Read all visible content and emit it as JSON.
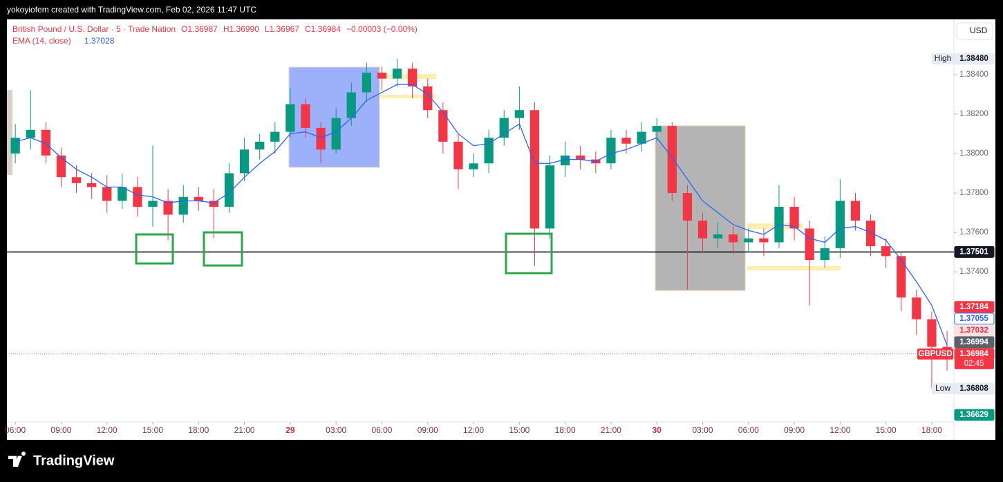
{
  "header": {
    "credit": "yokoyiofem created with TradingView.com, Feb 02, 2026 11:47 UTC",
    "logo": "TradingView"
  },
  "chart_data": {
    "type": "candlestick",
    "symbol": "British Pound / U.S. Dollar · 5 · Trade Nation",
    "ohlc_labels": [
      "O",
      "H",
      "L",
      "C"
    ],
    "ohlc_values": [
      "1.36987",
      "1.36990",
      "1.36967",
      "1.36984"
    ],
    "change": "−0.00003 (−0.00%)",
    "currency": "USD",
    "up_color": "#089981",
    "down_color": "#f23645",
    "candles": {
      "x": [
        0,
        1,
        2,
        3,
        4,
        5,
        6,
        7,
        8,
        9,
        10,
        11,
        12,
        13,
        14,
        15,
        16,
        17,
        18,
        19,
        20,
        21,
        22,
        23,
        24,
        25,
        26,
        27,
        28,
        29,
        30,
        31,
        32,
        33,
        34,
        35,
        36,
        37,
        38,
        39,
        40,
        41,
        42,
        43,
        44,
        45,
        46,
        47,
        48,
        49,
        50,
        51,
        52,
        53,
        54,
        55,
        56,
        57,
        58,
        59,
        60,
        61
      ],
      "open": [
        1.38,
        1.3808,
        1.3812,
        1.3799,
        1.3788,
        1.3785,
        1.3783,
        1.3776,
        1.3783,
        1.3773,
        1.3776,
        1.3769,
        1.3778,
        1.3776,
        1.3773,
        1.379,
        1.3802,
        1.3806,
        1.3811,
        1.3825,
        1.3813,
        1.3802,
        1.3818,
        1.3831,
        1.3841,
        1.3838,
        1.3843,
        1.3834,
        1.3822,
        1.3806,
        1.3792,
        1.3795,
        1.3808,
        1.3818,
        1.3822,
        1.3762,
        1.3794,
        1.3799,
        1.3797,
        1.3795,
        1.3808,
        1.3805,
        1.3811,
        1.3814,
        1.378,
        1.3766,
        1.3757,
        1.3759,
        1.3755,
        1.3757,
        1.3755,
        1.3773,
        1.3762,
        1.3746,
        1.3752,
        1.3776,
        1.3766,
        1.3753,
        1.3748,
        1.3727,
        1.3716,
        1.3702
      ],
      "high": [
        1.3815,
        1.3832,
        1.3816,
        1.3803,
        1.3794,
        1.379,
        1.3789,
        1.379,
        1.3788,
        1.3804,
        1.3782,
        1.3784,
        1.3783,
        1.3782,
        1.3795,
        1.3808,
        1.381,
        1.3816,
        1.3833,
        1.3828,
        1.3816,
        1.3823,
        1.3836,
        1.3846,
        1.3844,
        1.3848,
        1.3846,
        1.3838,
        1.3826,
        1.381,
        1.38,
        1.3812,
        1.3822,
        1.3834,
        1.3826,
        1.3799,
        1.3806,
        1.3804,
        1.3801,
        1.3812,
        1.3812,
        1.3816,
        1.3818,
        1.3816,
        1.3784,
        1.377,
        1.3765,
        1.3763,
        1.3762,
        1.3762,
        1.3784,
        1.3778,
        1.3766,
        1.3758,
        1.3787,
        1.378,
        1.3769,
        1.3757,
        1.375,
        1.3731,
        1.372,
        1.371
      ],
      "low": [
        1.3795,
        1.3802,
        1.3795,
        1.3783,
        1.378,
        1.3777,
        1.377,
        1.3772,
        1.3768,
        1.3763,
        1.3756,
        1.3765,
        1.3771,
        1.3757,
        1.377,
        1.3786,
        1.3797,
        1.38,
        1.3808,
        1.3808,
        1.3795,
        1.38,
        1.3814,
        1.3826,
        1.3832,
        1.3834,
        1.3828,
        1.3818,
        1.38,
        1.3782,
        1.3788,
        1.379,
        1.3804,
        1.3812,
        1.3743,
        1.3757,
        1.3788,
        1.3792,
        1.379,
        1.3792,
        1.38,
        1.3801,
        1.3806,
        1.3776,
        1.3731,
        1.375,
        1.3752,
        1.3749,
        1.375,
        1.3748,
        1.3752,
        1.3756,
        1.3723,
        1.3742,
        1.3747,
        1.3761,
        1.3748,
        1.3742,
        1.372,
        1.3708,
        1.3681,
        1.369
      ],
      "close": [
        1.3808,
        1.3812,
        1.3799,
        1.3788,
        1.3785,
        1.3783,
        1.3776,
        1.3783,
        1.3773,
        1.3776,
        1.3769,
        1.3778,
        1.3776,
        1.3773,
        1.379,
        1.3802,
        1.3806,
        1.3811,
        1.3825,
        1.3813,
        1.3802,
        1.3818,
        1.3831,
        1.3841,
        1.3838,
        1.3843,
        1.3834,
        1.3822,
        1.3806,
        1.3792,
        1.3795,
        1.3808,
        1.3818,
        1.3822,
        1.3762,
        1.3794,
        1.3799,
        1.3797,
        1.3795,
        1.3808,
        1.3805,
        1.3811,
        1.3814,
        1.378,
        1.3766,
        1.3757,
        1.3759,
        1.3755,
        1.3757,
        1.3755,
        1.3773,
        1.3762,
        1.3746,
        1.3752,
        1.3776,
        1.3766,
        1.3753,
        1.3748,
        1.3727,
        1.3716,
        1.3702,
        1.36984
      ]
    },
    "ema": {
      "name": "EMA (14, close)",
      "color": "#2962ff",
      "value": 1.37028,
      "values": [
        1.3806,
        1.3808,
        1.3805,
        1.3798,
        1.3792,
        1.3788,
        1.3783,
        1.3783,
        1.3779,
        1.3778,
        1.3775,
        1.3776,
        1.3776,
        1.3775,
        1.378,
        1.3788,
        1.3795,
        1.3801,
        1.381,
        1.3811,
        1.3808,
        1.3811,
        1.3818,
        1.3827,
        1.3831,
        1.3835,
        1.3835,
        1.383,
        1.3821,
        1.381,
        1.3804,
        1.3805,
        1.381,
        1.3815,
        1.3795,
        1.3795,
        1.3797,
        1.3797,
        1.3796,
        1.38,
        1.3802,
        1.3805,
        1.3808,
        1.3798,
        1.3787,
        1.3776,
        1.377,
        1.3764,
        1.3761,
        1.3759,
        1.3764,
        1.3763,
        1.3757,
        1.3755,
        1.3762,
        1.3763,
        1.376,
        1.3756,
        1.3746,
        1.3735,
        1.3723,
        1.37028
      ]
    },
    "xlim": [
      -0.55,
      61.45
    ],
    "ylim": [
      1.3664,
      1.3868
    ],
    "xticks": [
      {
        "value": 0,
        "label": "06:00"
      },
      {
        "value": 3,
        "label": "09:00"
      },
      {
        "value": 6,
        "label": "12:00"
      },
      {
        "value": 9,
        "label": "15:00"
      },
      {
        "value": 12,
        "label": "18:00"
      },
      {
        "value": 15,
        "label": "21:00"
      },
      {
        "value": 18,
        "label": "29"
      },
      {
        "value": 21,
        "label": "03:00"
      },
      {
        "value": 24,
        "label": "06:00"
      },
      {
        "value": 27,
        "label": "09:00"
      },
      {
        "value": 30,
        "label": "12:00"
      },
      {
        "value": 33,
        "label": "15:00"
      },
      {
        "value": 36,
        "label": "18:00"
      },
      {
        "value": 39,
        "label": "21:00"
      },
      {
        "value": 42,
        "label": "30"
      },
      {
        "value": 45,
        "label": "03:00"
      },
      {
        "value": 48,
        "label": "06:00"
      },
      {
        "value": 51,
        "label": "09:00"
      },
      {
        "value": 54,
        "label": "12:00"
      },
      {
        "value": 57,
        "label": "15:00"
      },
      {
        "value": 60,
        "label": "18:00"
      }
    ],
    "yticks": [
      {
        "value": 1.384,
        "label": "1.38400"
      },
      {
        "value": 1.382,
        "label": "1.38200"
      },
      {
        "value": 1.38,
        "label": "1.38000"
      },
      {
        "value": 1.378,
        "label": "1.37800"
      },
      {
        "value": 1.376,
        "label": "1.37600"
      },
      {
        "value": 1.374,
        "label": "1.37400"
      }
    ],
    "hline": {
      "value": 1.37501,
      "color": "#000000"
    },
    "last_price": {
      "value": 1.36984,
      "color": "#f23645"
    },
    "high_tag": {
      "name": "High",
      "value": 1.3848,
      "label": "1.38480"
    },
    "low_tag": {
      "name": "Low",
      "value": 1.36808
    },
    "price_tags": [
      {
        "value": 1.37184,
        "bg": "#f23645",
        "fg": "#ffffff"
      },
      {
        "value": 1.37055,
        "bg": "#ffffff",
        "fg": "#2962ff"
      },
      {
        "value": 1.37032,
        "bg": "#fde0e2",
        "fg": "#f23645"
      },
      {
        "value": 1.36994,
        "bg": "#5d606b",
        "fg": "#ffffff"
      },
      {
        "value": 1.36984,
        "bg": "#f23645",
        "fg": "#ffffff",
        "name": "GBPUSD",
        "countdown": "02:45"
      }
    ],
    "bottom_tag": {
      "value": 1.36629,
      "bg": "#089981",
      "fg": "#ffffff"
    }
  }
}
